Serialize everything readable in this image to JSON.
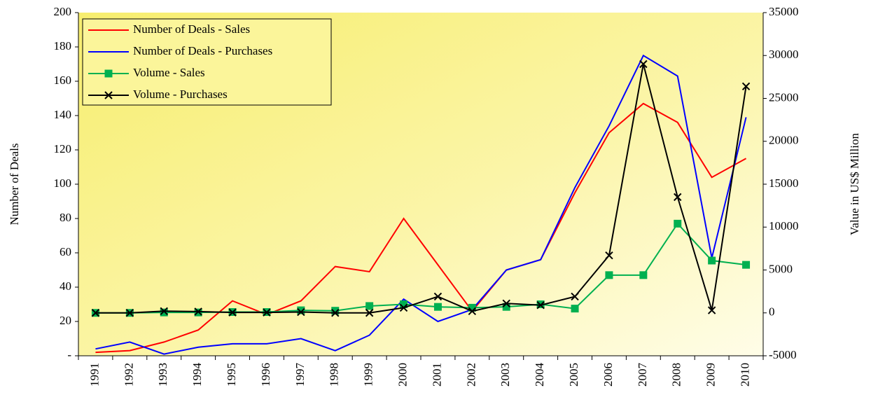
{
  "chart_data": {
    "type": "line",
    "categories": [
      "1991",
      "1992",
      "1993",
      "1994",
      "1995",
      "1996",
      "1997",
      "1998",
      "1999",
      "2000",
      "2001",
      "2002",
      "2003",
      "2004",
      "2005",
      "2006",
      "2007",
      "2008",
      "2009",
      "2010"
    ],
    "series": [
      {
        "name": "Number of Deals - Sales",
        "color": "#ff0000",
        "marker": "none",
        "axis": "y",
        "values": [
          2,
          3,
          8,
          15,
          32,
          24,
          32,
          52,
          49,
          80,
          53,
          26,
          50,
          56,
          95,
          130,
          147,
          136,
          104,
          115
        ]
      },
      {
        "name": "Number of Deals - Purchases",
        "color": "#0000ff",
        "marker": "none",
        "axis": "y",
        "values": [
          4,
          8,
          1,
          5,
          7,
          7,
          10,
          3,
          12,
          33,
          20,
          27,
          50,
          56,
          98,
          134,
          175,
          163,
          57,
          139
        ]
      },
      {
        "name": "Volume - Sales",
        "color": "#00b050",
        "marker": "square",
        "axis": "y2",
        "values": [
          0,
          0,
          50,
          50,
          100,
          100,
          300,
          250,
          800,
          1000,
          700,
          600,
          700,
          1000,
          500,
          4400,
          4400,
          10400,
          6100,
          5600
        ]
      },
      {
        "name": "Volume - Purchases",
        "color": "#000000",
        "marker": "x",
        "axis": "y2",
        "values": [
          0,
          0,
          200,
          150,
          50,
          50,
          100,
          0,
          0,
          600,
          1900,
          200,
          1100,
          900,
          1900,
          6700,
          29000,
          13500,
          300,
          26400
        ]
      }
    ],
    "ylabel": "Number of Deals",
    "y2label": "Value in US$ Million",
    "ylim": [
      0,
      200
    ],
    "yticks": [
      {
        "value": 0,
        "label": "-"
      },
      20,
      40,
      60,
      80,
      100,
      120,
      140,
      160,
      180,
      200
    ],
    "y2lim": [
      -5000,
      35000
    ],
    "y2ticks": [
      -5000,
      0,
      5000,
      10000,
      15000,
      20000,
      25000,
      30000,
      35000
    ],
    "legend": "upper left",
    "grid": false
  }
}
